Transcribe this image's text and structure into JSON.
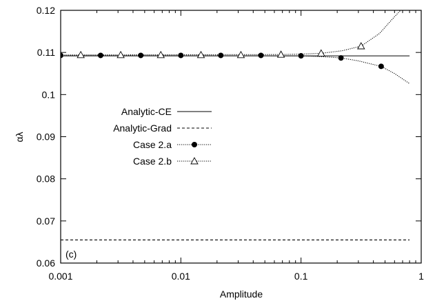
{
  "chart_data": {
    "type": "line",
    "xlabel": "Amplitude",
    "ylabel": "αλ",
    "xscale": "log",
    "xlim": [
      0.001,
      1
    ],
    "ylim": [
      0.06,
      0.12
    ],
    "xticks": [
      {
        "value": 0.001,
        "label": "0.001"
      },
      {
        "value": 0.01,
        "label": "0.01"
      },
      {
        "value": 0.1,
        "label": "0.1"
      },
      {
        "value": 1,
        "label": "1"
      }
    ],
    "yticks": [
      {
        "value": 0.06,
        "label": "0.06"
      },
      {
        "value": 0.07,
        "label": "0.07"
      },
      {
        "value": 0.08,
        "label": "0.08"
      },
      {
        "value": 0.09,
        "label": "0.09"
      },
      {
        "value": 0.1,
        "label": "0.1"
      },
      {
        "value": 0.11,
        "label": "0.11"
      },
      {
        "value": 0.12,
        "label": "0.12"
      }
    ],
    "grid": false,
    "legend_position": "center-left",
    "annotation": "(c)",
    "series": [
      {
        "name": "Analytic-CE",
        "style": "solid",
        "marker": "none",
        "x": [
          0.001,
          0.8
        ],
        "y": [
          0.1092,
          0.1092
        ]
      },
      {
        "name": "Analytic-Grad",
        "style": "dashed",
        "marker": "none",
        "x": [
          0.001,
          0.8
        ],
        "y": [
          0.0655,
          0.0655
        ]
      },
      {
        "name": "Case 2.a",
        "style": "dotted",
        "marker": "filled-circle",
        "x": [
          0.001,
          0.00215,
          0.00464,
          0.01,
          0.0215,
          0.0464,
          0.1,
          0.215,
          0.464
        ],
        "y": [
          0.1093,
          0.1093,
          0.1093,
          0.1093,
          0.1093,
          0.1093,
          0.1092,
          0.1087,
          0.1067
        ],
        "curve_x": [
          0.001,
          0.1,
          0.15,
          0.215,
          0.3,
          0.464,
          0.6,
          0.8
        ],
        "curve_y": [
          0.1093,
          0.1092,
          0.109,
          0.1087,
          0.108,
          0.1067,
          0.105,
          0.1026
        ]
      },
      {
        "name": "Case 2.b",
        "style": "dotted",
        "marker": "open-triangle",
        "x": [
          0.00147,
          0.00316,
          0.00681,
          0.0147,
          0.0316,
          0.0681,
          0.147,
          0.316
        ],
        "y": [
          0.1094,
          0.1094,
          0.1094,
          0.1094,
          0.1094,
          0.1095,
          0.1098,
          0.1115
        ],
        "curve_x": [
          0.001,
          0.0681,
          0.1,
          0.147,
          0.22,
          0.316,
          0.45,
          0.6,
          0.7
        ],
        "curve_y": [
          0.1094,
          0.1095,
          0.1096,
          0.1098,
          0.1104,
          0.1115,
          0.1145,
          0.1185,
          0.1205
        ]
      }
    ]
  }
}
